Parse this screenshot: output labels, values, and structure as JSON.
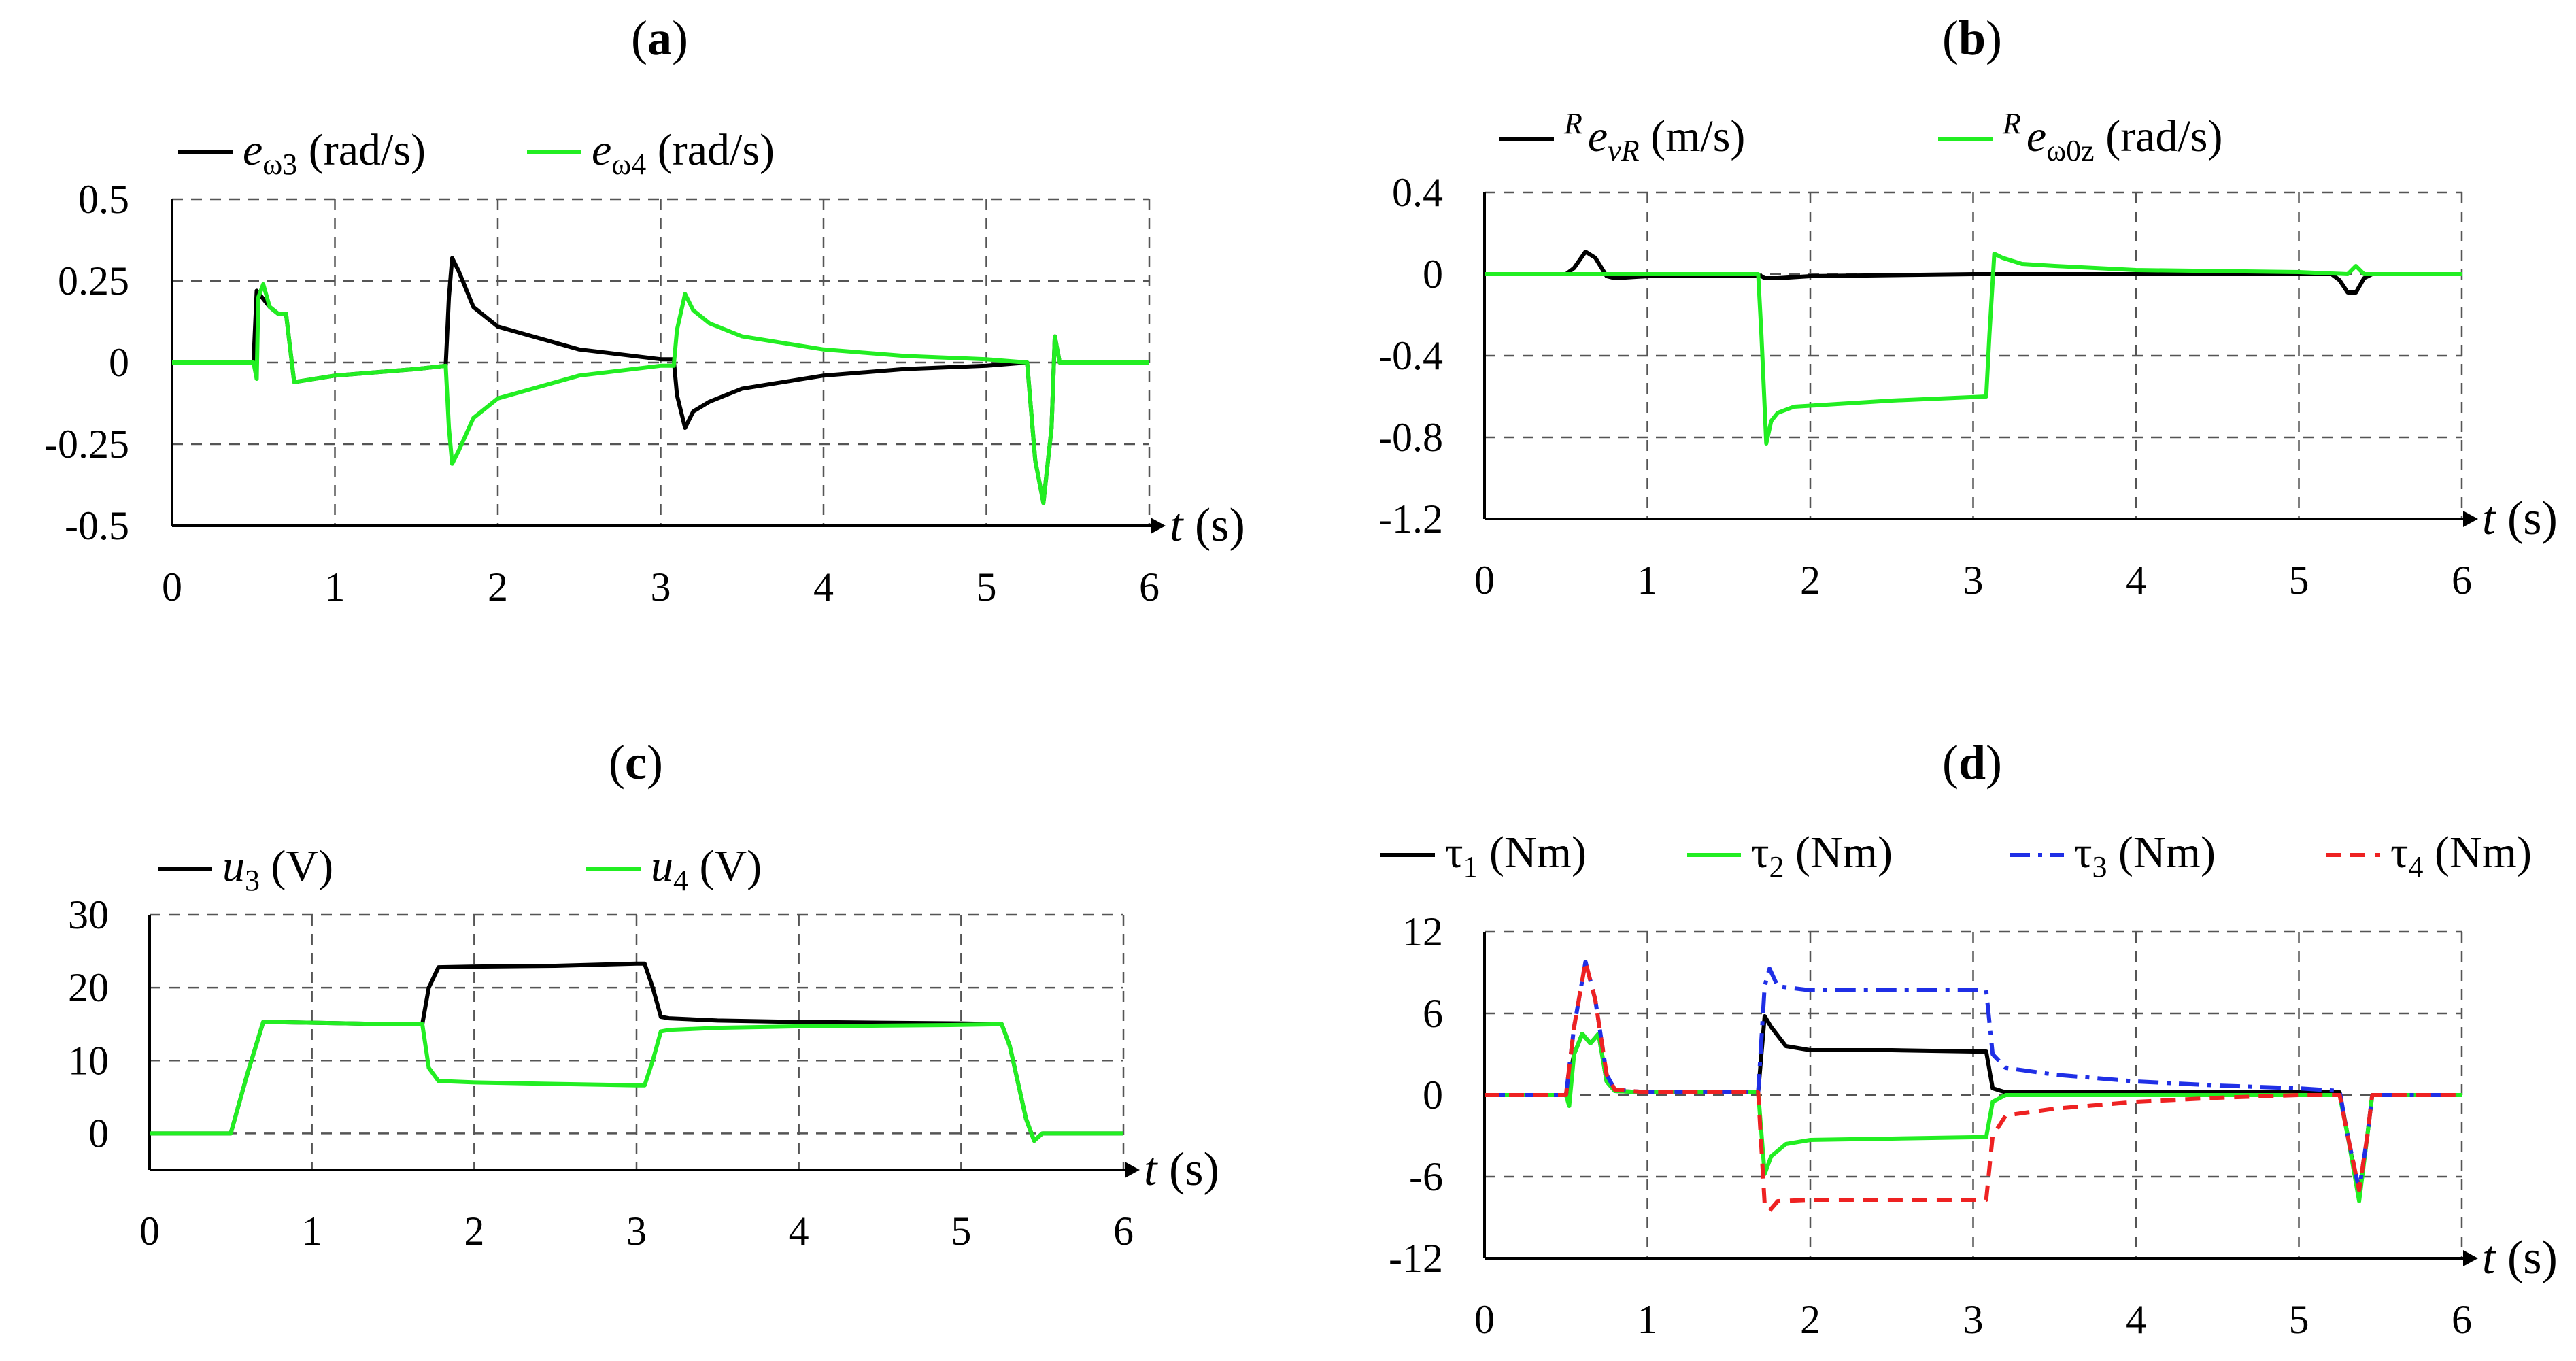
{
  "chart_data": [
    {
      "panel": "(a)",
      "panel_letter": "a",
      "type": "line",
      "xlabel": "t (s)",
      "xlabel_var": "t",
      "xlabel_unit": " (s)",
      "xlim": [
        0,
        6
      ],
      "ylim": [
        -0.5,
        0.5
      ],
      "x_ticks": [
        0,
        1,
        2,
        3,
        4,
        5,
        6
      ],
      "x_tick_labels": [
        "0",
        "1",
        "2",
        "3",
        "4",
        "5",
        "6"
      ],
      "y_ticks": [
        -0.5,
        -0.25,
        0,
        0.25,
        0.5
      ],
      "y_tick_labels": [
        "-0.5",
        "-0.25",
        "0",
        "0.25",
        "0.5"
      ],
      "grid": "dashed",
      "series": [
        {
          "name": "e ω3 (rad/s)",
          "legend": {
            "main": "e",
            "sub": "ω3",
            "unit": " (rad/s)"
          },
          "color": "#000000",
          "dash": "solid",
          "x": [
            0,
            0.5,
            0.52,
            0.6,
            0.65,
            0.7,
            0.75,
            1.0,
            1.5,
            1.68,
            1.7,
            1.72,
            1.76,
            1.85,
            2.0,
            2.5,
            3.0,
            3.08,
            3.1,
            3.15,
            3.2,
            3.3,
            3.5,
            4.0,
            4.5,
            5.0,
            5.25,
            5.3,
            5.35,
            5.4,
            5.42,
            5.45,
            5.5,
            6.0
          ],
          "y": [
            0,
            0,
            0.22,
            0.17,
            0.15,
            0.15,
            -0.06,
            -0.04,
            -0.02,
            -0.01,
            0.2,
            0.32,
            0.28,
            0.17,
            0.11,
            0.04,
            0.01,
            0.01,
            -0.1,
            -0.2,
            -0.15,
            -0.12,
            -0.08,
            -0.04,
            -0.02,
            -0.01,
            0,
            -0.3,
            -0.43,
            -0.2,
            0.08,
            0,
            0,
            0
          ]
        },
        {
          "name": "e ω4 (rad/s)",
          "legend": {
            "main": "e",
            "sub": "ω4",
            "unit": " (rad/s)"
          },
          "color": "#22ee22",
          "dash": "solid",
          "x": [
            0,
            0.5,
            0.52,
            0.53,
            0.56,
            0.6,
            0.65,
            0.7,
            0.75,
            1.0,
            1.5,
            1.68,
            1.7,
            1.72,
            1.76,
            1.85,
            2.0,
            2.5,
            3.0,
            3.08,
            3.1,
            3.15,
            3.2,
            3.3,
            3.5,
            4.0,
            4.5,
            5.0,
            5.25,
            5.3,
            5.35,
            5.4,
            5.42,
            5.45,
            5.5,
            6.0
          ],
          "y": [
            0,
            0,
            -0.05,
            0.2,
            0.24,
            0.17,
            0.15,
            0.15,
            -0.06,
            -0.04,
            -0.02,
            -0.01,
            -0.2,
            -0.31,
            -0.27,
            -0.17,
            -0.11,
            -0.04,
            -0.01,
            -0.01,
            0.1,
            0.21,
            0.16,
            0.12,
            0.08,
            0.04,
            0.02,
            0.01,
            0,
            -0.3,
            -0.43,
            -0.2,
            0.08,
            0,
            0,
            0
          ]
        }
      ]
    },
    {
      "panel": "(b)",
      "panel_letter": "b",
      "type": "line",
      "xlabel": "t (s)",
      "xlabel_var": "t",
      "xlabel_unit": " (s)",
      "xlim": [
        0,
        6
      ],
      "ylim": [
        -1.2,
        0.4
      ],
      "x_ticks": [
        0,
        1,
        2,
        3,
        4,
        5,
        6
      ],
      "x_tick_labels": [
        "0",
        "1",
        "2",
        "3",
        "4",
        "5",
        "6"
      ],
      "y_ticks": [
        -1.2,
        -0.8,
        -0.4,
        0,
        0.4
      ],
      "y_tick_labels": [
        "-1.2",
        "-0.8",
        "-0.4",
        "0",
        "0.4"
      ],
      "grid": "dashed",
      "series": [
        {
          "name": "R e vR (m/s)",
          "legend": {
            "sup": "R",
            "main": "e",
            "sub": "vR",
            "unit": " (m/s)"
          },
          "color": "#000000",
          "dash": "solid",
          "x": [
            0,
            0.5,
            0.55,
            0.62,
            0.68,
            0.75,
            0.8,
            1.0,
            1.7,
            1.72,
            1.8,
            2.0,
            3.0,
            3.2,
            4.0,
            5.2,
            5.25,
            5.3,
            5.35,
            5.4,
            5.45,
            6.0
          ],
          "y": [
            0,
            0,
            0.03,
            0.11,
            0.08,
            -0.01,
            -0.02,
            -0.01,
            -0.01,
            -0.02,
            -0.02,
            -0.01,
            0,
            0,
            0,
            0,
            -0.03,
            -0.09,
            -0.09,
            -0.02,
            0,
            0
          ]
        },
        {
          "name": "R e ω0z (rad/s)",
          "legend": {
            "sup": "R",
            "main": "e",
            "sub": "ω0z",
            "unit": " (rad/s)"
          },
          "color": "#22ee22",
          "dash": "solid",
          "x": [
            0,
            1.0,
            1.68,
            1.7,
            1.73,
            1.76,
            1.8,
            1.9,
            2.1,
            2.5,
            3.08,
            3.1,
            3.13,
            3.18,
            3.3,
            3.5,
            4.0,
            5.0,
            5.3,
            5.35,
            5.4,
            6.0
          ],
          "y": [
            0,
            0,
            0,
            -0.3,
            -0.83,
            -0.72,
            -0.68,
            -0.65,
            -0.64,
            -0.62,
            -0.6,
            -0.3,
            0.1,
            0.08,
            0.05,
            0.04,
            0.02,
            0.01,
            0,
            0.04,
            0,
            0
          ]
        }
      ]
    },
    {
      "panel": "(c)",
      "panel_letter": "c",
      "type": "line",
      "xlabel": "t (s)",
      "xlabel_var": "t",
      "xlabel_unit": " (s)",
      "xlim": [
        0,
        6
      ],
      "ylim": [
        -5,
        30
      ],
      "x_ticks": [
        0,
        1,
        2,
        3,
        4,
        5,
        6
      ],
      "x_tick_labels": [
        "0",
        "1",
        "2",
        "3",
        "4",
        "5",
        "6"
      ],
      "y_ticks": [
        0,
        10,
        20,
        30
      ],
      "y_tick_labels": [
        "0",
        "10",
        "20",
        "30"
      ],
      "grid": "dashed",
      "series": [
        {
          "name": "u3 (V)",
          "legend": {
            "main": "u",
            "sub": "3",
            "unit": " (V)"
          },
          "color": "#000000",
          "dash": "solid",
          "x": [
            0,
            0.5,
            0.6,
            0.7,
            1.0,
            1.5,
            1.68,
            1.72,
            1.78,
            2.0,
            2.5,
            3.0,
            3.05,
            3.1,
            3.15,
            3.2,
            3.5,
            4.0,
            4.5,
            5.0,
            5.25,
            5.3,
            5.4,
            5.45,
            5.5,
            6.0
          ],
          "y": [
            0,
            0,
            8,
            15.3,
            15.2,
            15,
            15,
            20,
            22.8,
            22.9,
            23,
            23.3,
            23.3,
            20,
            16,
            15.8,
            15.5,
            15.3,
            15.2,
            15.1,
            15,
            12,
            2,
            -1,
            0,
            0
          ]
        },
        {
          "name": "u4 (V)",
          "legend": {
            "main": "u",
            "sub": "4",
            "unit": " (V)"
          },
          "color": "#22ee22",
          "dash": "solid",
          "x": [
            0,
            0.5,
            0.6,
            0.7,
            1.0,
            1.5,
            1.68,
            1.72,
            1.78,
            2.0,
            2.5,
            3.0,
            3.05,
            3.1,
            3.15,
            3.2,
            3.5,
            4.0,
            4.5,
            5.0,
            5.25,
            5.3,
            5.4,
            5.45,
            5.5,
            6.0
          ],
          "y": [
            0,
            0,
            8,
            15.3,
            15.2,
            15,
            15,
            9,
            7.2,
            7,
            6.8,
            6.6,
            6.6,
            10,
            14,
            14.2,
            14.5,
            14.7,
            14.8,
            14.9,
            15,
            12,
            2,
            -1,
            0,
            0
          ]
        }
      ]
    },
    {
      "panel": "(d)",
      "panel_letter": "d",
      "type": "line",
      "xlabel": "t (s)",
      "xlabel_var": "t",
      "xlabel_unit": " (s)",
      "xlim": [
        0,
        6
      ],
      "ylim": [
        -12,
        12
      ],
      "x_ticks": [
        0,
        1,
        2,
        3,
        4,
        5,
        6
      ],
      "x_tick_labels": [
        "0",
        "1",
        "2",
        "3",
        "4",
        "5",
        "6"
      ],
      "y_ticks": [
        -12,
        -6,
        0,
        6,
        12
      ],
      "y_tick_labels": [
        "-12",
        "-6",
        "0",
        "6",
        "12"
      ],
      "grid": "dashed",
      "series": [
        {
          "name": "τ1 (Nm)",
          "legend": {
            "main": "τ",
            "sub": "1",
            "unit": " (Nm)"
          },
          "color": "#000000",
          "dash": "solid",
          "x": [
            0,
            0.5,
            0.55,
            0.6,
            0.65,
            0.7,
            0.75,
            0.8,
            1.0,
            1.68,
            1.72,
            1.76,
            1.85,
            2.0,
            2.5,
            3.0,
            3.08,
            3.12,
            3.2,
            3.5,
            4.0,
            5.0,
            5.25,
            5.3,
            5.37,
            5.42,
            5.45,
            6.0
          ],
          "y": [
            0,
            0,
            3,
            4.5,
            3.8,
            4.5,
            1,
            0.3,
            0.2,
            0.2,
            5.8,
            5,
            3.6,
            3.3,
            3.3,
            3.2,
            3.2,
            0.5,
            0.2,
            0.2,
            0.2,
            0.2,
            0.2,
            -3,
            -7.5,
            -3,
            0,
            0
          ]
        },
        {
          "name": "τ2 (Nm)",
          "legend": {
            "main": "τ",
            "sub": "2",
            "unit": " (Nm)"
          },
          "color": "#22ee22",
          "dash": "solid",
          "x": [
            0,
            0.5,
            0.52,
            0.55,
            0.6,
            0.65,
            0.7,
            0.75,
            0.8,
            1.0,
            1.68,
            1.72,
            1.76,
            1.85,
            2.0,
            2.5,
            3.0,
            3.08,
            3.12,
            3.2,
            3.5,
            4.0,
            5.0,
            5.25,
            5.3,
            5.37,
            5.42,
            5.45,
            6.0
          ],
          "y": [
            0,
            0,
            -0.8,
            3,
            4.5,
            3.8,
            4.5,
            1,
            0.3,
            0.2,
            0.2,
            -5.8,
            -4.5,
            -3.6,
            -3.3,
            -3.2,
            -3.1,
            -3.1,
            -0.5,
            0,
            0,
            0,
            0,
            0,
            -3,
            -7.8,
            -3,
            0,
            0
          ]
        },
        {
          "name": "τ3 (Nm)",
          "legend": {
            "main": "τ",
            "sub": "3",
            "unit": " (Nm)"
          },
          "color": "#1f2fe6",
          "dash": "dashdot",
          "x": [
            0,
            0.5,
            0.55,
            0.62,
            0.68,
            0.75,
            0.8,
            1.0,
            1.68,
            1.72,
            1.75,
            1.8,
            2.0,
            2.5,
            3.0,
            3.08,
            3.12,
            3.2,
            3.5,
            4.0,
            4.5,
            5.0,
            5.25,
            5.3,
            5.37,
            5.42,
            5.45,
            6.0
          ],
          "y": [
            0,
            0,
            5,
            9.8,
            7,
            1.5,
            0.4,
            0.2,
            0.2,
            8,
            9.3,
            8,
            7.7,
            7.7,
            7.7,
            7.7,
            3,
            2,
            1.5,
            1,
            0.7,
            0.5,
            0.3,
            -3,
            -7,
            -3,
            0,
            0
          ]
        },
        {
          "name": "τ4 (Nm)",
          "legend": {
            "main": "τ",
            "sub": "4",
            "unit": " (Nm)"
          },
          "color": "#ee2222",
          "dash": "dashed",
          "x": [
            0,
            0.5,
            0.55,
            0.62,
            0.68,
            0.75,
            0.8,
            1.0,
            1.68,
            1.72,
            1.75,
            1.8,
            2.0,
            2.5,
            3.0,
            3.08,
            3.12,
            3.2,
            3.5,
            4.0,
            4.5,
            5.0,
            5.25,
            5.3,
            5.37,
            5.42,
            5.45,
            6.0
          ],
          "y": [
            0,
            0,
            5,
            9.8,
            7,
            1.5,
            0.4,
            0.2,
            0.2,
            -8,
            -8.5,
            -7.8,
            -7.7,
            -7.7,
            -7.7,
            -7.7,
            -3,
            -1.5,
            -1,
            -0.5,
            -0.2,
            0,
            0,
            -3,
            -7,
            -3,
            0,
            0
          ]
        }
      ]
    }
  ]
}
